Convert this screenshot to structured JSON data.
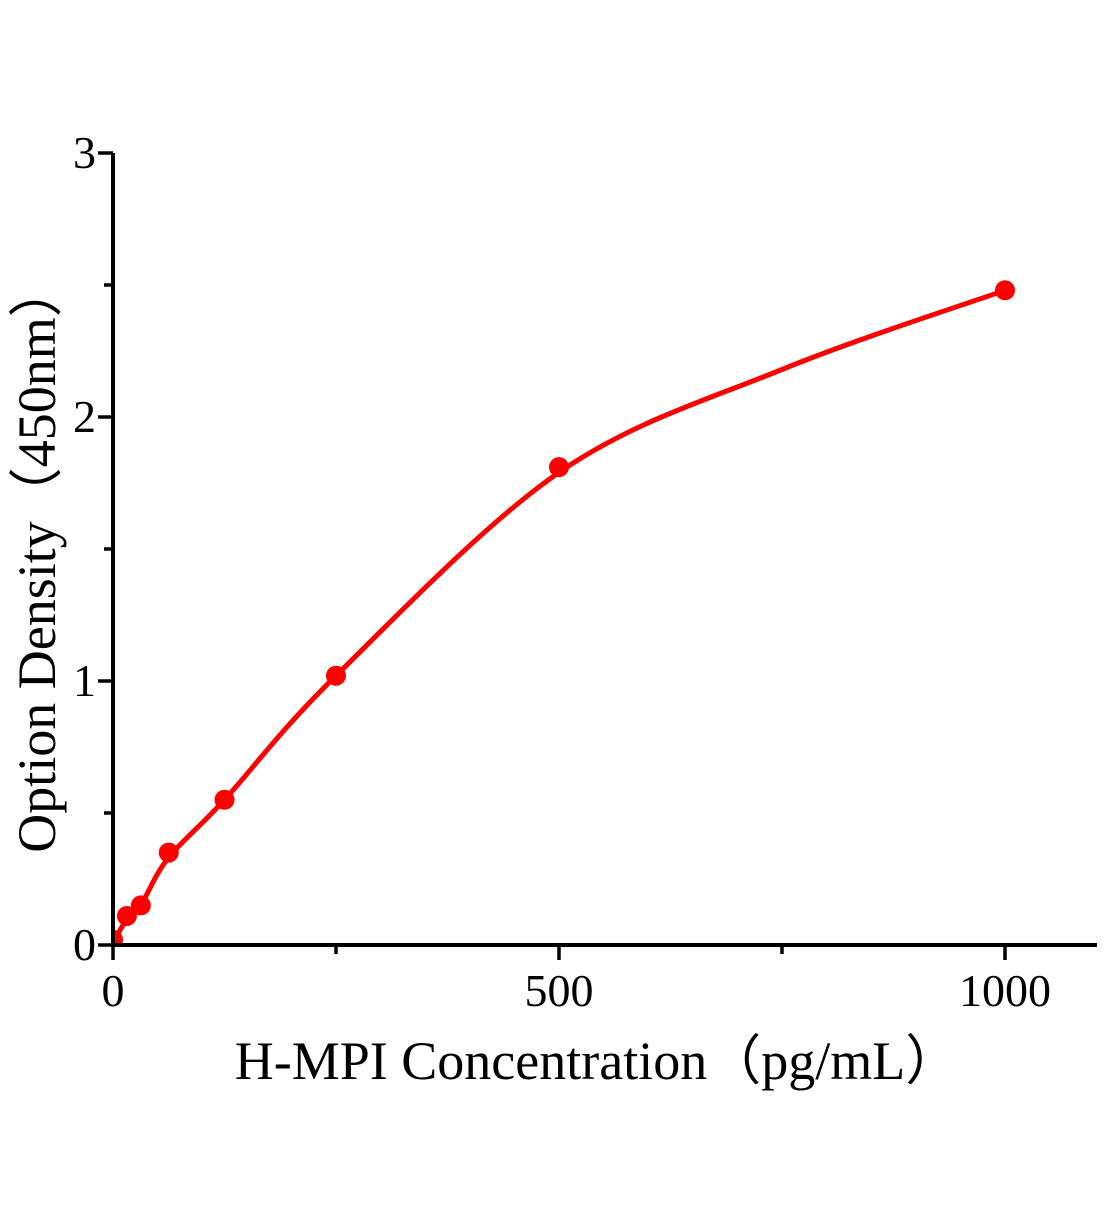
{
  "figure": {
    "background_color": "#ffffff",
    "axis_color": "#000000",
    "accent_color": "#ff0000"
  },
  "chart_data": {
    "type": "scatter",
    "title": "",
    "xlabel": "H-MPI Concentration（pg/mL）",
    "ylabel": "Option Density（450nm）",
    "xlim": [
      0,
      1103
    ],
    "ylim": [
      0,
      3
    ],
    "grid": false,
    "legend": null,
    "x_major_ticks": [
      0,
      500,
      1000
    ],
    "x_minor_ticks": [
      250,
      750
    ],
    "y_major_ticks": [
      0,
      1,
      2,
      3
    ],
    "y_minor_ticks": [
      0.5,
      1.5,
      2.5
    ],
    "series": [
      {
        "name": "standard-points",
        "type": "scatter",
        "color": "#ff0000",
        "marker": "circle",
        "points": [
          [
            0,
            0.02
          ],
          [
            15.6,
            0.11
          ],
          [
            31.2,
            0.15
          ],
          [
            62.5,
            0.35
          ],
          [
            125,
            0.55
          ],
          [
            250,
            1.02
          ],
          [
            500,
            1.81
          ],
          [
            1000,
            2.48
          ]
        ]
      },
      {
        "name": "fitted-curve",
        "type": "line",
        "color": "#ff0000",
        "points": [
          [
            0,
            0.01
          ],
          [
            16,
            0.1
          ],
          [
            31,
            0.15
          ],
          [
            62,
            0.33
          ],
          [
            125,
            0.55
          ],
          [
            250,
            1.02
          ],
          [
            500,
            1.79
          ],
          [
            750,
            2.18
          ],
          [
            1000,
            2.48
          ]
        ]
      }
    ]
  }
}
